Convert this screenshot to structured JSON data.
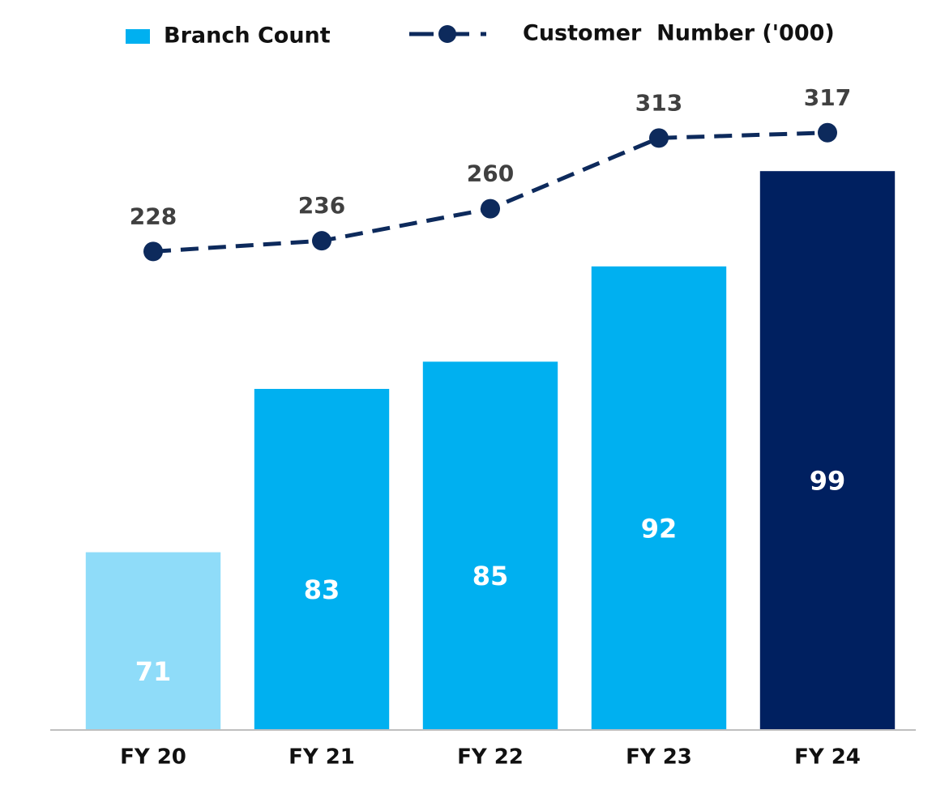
{
  "chart_data": {
    "type": "bar",
    "categories": [
      "FY 20",
      "FY 21",
      "FY 22",
      "FY 23",
      "FY 24"
    ],
    "series": [
      {
        "name": "Branch Count",
        "type": "bar",
        "color": "#00b0f0",
        "colors": [
          "#8fdcf9",
          "#00b0f0",
          "#00b0f0",
          "#00b0f0",
          "#002060"
        ],
        "values": [
          71,
          83,
          85,
          92,
          99
        ]
      },
      {
        "name": "Customer  Number ('000)",
        "type": "line",
        "axis": "y2",
        "color": "#0d2a5c",
        "values": [
          228,
          236,
          260,
          313,
          317
        ]
      }
    ],
    "ylim": [
      58,
      108
    ],
    "y2lim": [
      -130,
      380
    ],
    "legend": "top",
    "grid": false
  }
}
